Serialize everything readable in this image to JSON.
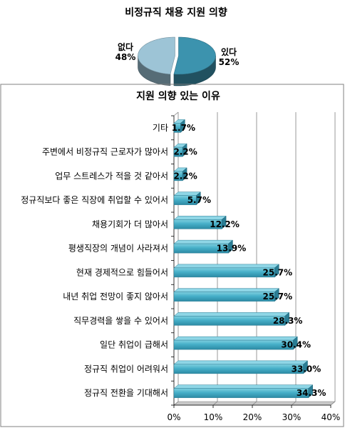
{
  "chart_data": [
    {
      "type": "pie",
      "title": "비정규직 채용 지원 의향",
      "slices": [
        {
          "label": "없다",
          "value": 48,
          "value_label": "48%",
          "color": "#9DC4D6"
        },
        {
          "label": "있다",
          "value": 52,
          "value_label": "52%",
          "color": "#3C93AE"
        }
      ]
    },
    {
      "type": "bar",
      "orientation": "horizontal",
      "title": "지원 의향 있는 이유",
      "categories": [
        "기타",
        "주변에서 비정규직 근로자가 많아서",
        "업무 스트레스가 적을 것 같아서",
        "정규직보다 좋은 직장에 취업할 수 있어서",
        "채용기회가 더 많아서",
        "평생직장의 개념이 사라져서",
        "현재 경제적으로 힘들어서",
        "내년 취업 전망이 좋지 않아서",
        "직무경력을 쌓을 수 있어서",
        "일단 취업이 급해서",
        "정규직 취업이 어려워서",
        "정규직 전환을 기대해서"
      ],
      "values": [
        1.7,
        2.2,
        2.2,
        5.7,
        12.2,
        13.9,
        25.7,
        25.7,
        28.3,
        30.4,
        33.0,
        34.3
      ],
      "value_labels": [
        "1.7%",
        "2.2%",
        "2.2%",
        "5.7%",
        "12.2%",
        "13.9%",
        "25.7%",
        "25.7%",
        "28.3%",
        "30.4%",
        "33.0%",
        "34.3%"
      ],
      "xlim": [
        0,
        40
      ],
      "xticks": [
        "0%",
        "10%",
        "20%",
        "30%",
        "40%"
      ],
      "grid": true,
      "bar_color": "#4DB3CC"
    }
  ]
}
